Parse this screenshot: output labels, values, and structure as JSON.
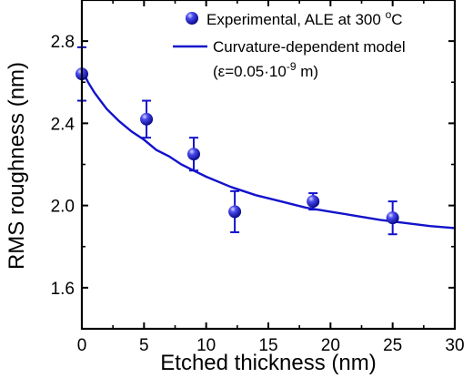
{
  "chart_data": {
    "type": "scatter",
    "xlabel": "Etched thickness (nm)",
    "ylabel": "RMS roughness (nm)",
    "xlim": [
      0,
      30
    ],
    "ylim": [
      1.4,
      3.0
    ],
    "xticks": [
      0,
      5,
      10,
      15,
      20,
      25,
      30
    ],
    "yticks": [
      1.6,
      2.0,
      2.4,
      2.8
    ],
    "xtick_labels": [
      "0",
      "5",
      "10",
      "15",
      "20",
      "25",
      "30"
    ],
    "ytick_labels": [
      "1.6",
      "2.0",
      "2.4",
      "2.8"
    ],
    "legend_position": "top-right",
    "series": [
      {
        "name": "Experimental, ALE at 300 °C",
        "kind": "scatter-errorbar",
        "color": "#1212cc",
        "points": [
          {
            "x": 0.0,
            "y": 2.64,
            "err": 0.13
          },
          {
            "x": 5.2,
            "y": 2.42,
            "err": 0.09
          },
          {
            "x": 9.0,
            "y": 2.25,
            "err": 0.08
          },
          {
            "x": 12.3,
            "y": 1.97,
            "err": 0.1
          },
          {
            "x": 18.6,
            "y": 2.02,
            "err": 0.04
          },
          {
            "x": 25.0,
            "y": 1.94,
            "err": 0.08
          }
        ]
      },
      {
        "name": "Curvature-dependent model",
        "kind": "line",
        "color": "#1212cc",
        "x": [
          0,
          0.5,
          1,
          1.5,
          2,
          3,
          4,
          5,
          6,
          7,
          8,
          9,
          10,
          12,
          14,
          16,
          18,
          20,
          22,
          24,
          26,
          28,
          30
        ],
        "y": [
          2.66,
          2.6,
          2.55,
          2.51,
          2.47,
          2.41,
          2.36,
          2.32,
          2.27,
          2.24,
          2.2,
          2.17,
          2.14,
          2.09,
          2.05,
          2.02,
          1.99,
          1.97,
          1.95,
          1.93,
          1.915,
          1.9,
          1.89
        ]
      }
    ],
    "legend": {
      "marker_label": "Experimental, ALE at 300 ",
      "marker_label_sup": "o",
      "marker_label_end": "C",
      "line_label": "Curvature-dependent model",
      "param_label": "(ε=0.05·10",
      "param_sup": "-9",
      "param_end": " m)"
    }
  }
}
